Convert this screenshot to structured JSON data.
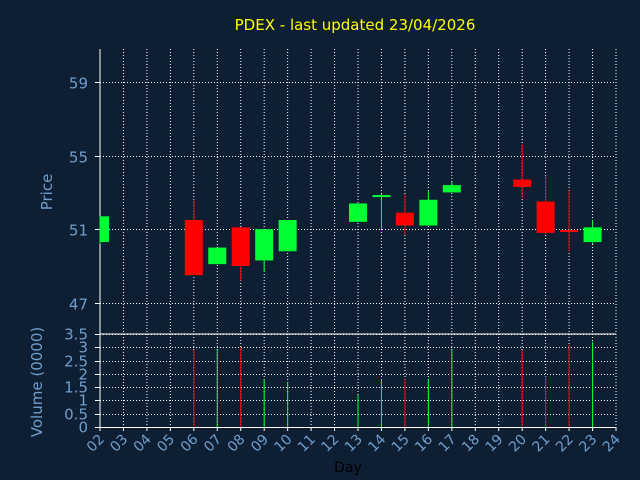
{
  "title": "PDEX - last updated 23/04/2026",
  "colors": {
    "background": "#0f1f33",
    "grid": "#ffffff",
    "axis_text": "#6f9fcf",
    "title": "#ffff00",
    "up": "#00ff33",
    "down": "#ff0000"
  },
  "chart_data": [
    {
      "type": "candlestick",
      "ylabel": "Price",
      "ylim": [
        45.3,
        60.8
      ],
      "yticks": [
        47,
        51,
        55,
        59
      ],
      "x_categories": [
        "02",
        "03",
        "04",
        "05",
        "06",
        "07",
        "08",
        "09",
        "10",
        "11",
        "12",
        "13",
        "14",
        "15",
        "16",
        "17",
        "18",
        "19",
        "20",
        "21",
        "22",
        "23",
        "24"
      ],
      "grid": true,
      "candles": [
        {
          "day": "02",
          "open": 50.3,
          "high": 51.7,
          "low": 50.2,
          "close": 51.7
        },
        {
          "day": "06",
          "open": 51.5,
          "high": 52.6,
          "low": 48.5,
          "close": 48.5
        },
        {
          "day": "07",
          "open": 49.1,
          "high": 50.0,
          "low": 49.1,
          "close": 50.0
        },
        {
          "day": "08",
          "open": 51.1,
          "high": 51.1,
          "low": 48.2,
          "close": 49.0
        },
        {
          "day": "09",
          "open": 49.3,
          "high": 51.0,
          "low": 48.7,
          "close": 51.0
        },
        {
          "day": "10",
          "open": 49.8,
          "high": 51.5,
          "low": 49.8,
          "close": 51.5
        },
        {
          "day": "13",
          "open": 51.4,
          "high": 52.4,
          "low": 51.4,
          "close": 52.4
        },
        {
          "day": "14",
          "open": 52.7,
          "high": 52.9,
          "low": 51.0,
          "close": 52.8
        },
        {
          "day": "15",
          "open": 51.9,
          "high": 52.9,
          "low": 50.7,
          "close": 51.2
        },
        {
          "day": "16",
          "open": 51.2,
          "high": 53.1,
          "low": 51.2,
          "close": 52.6
        },
        {
          "day": "17",
          "open": 53.0,
          "high": 53.6,
          "low": 53.0,
          "close": 53.4
        },
        {
          "day": "20",
          "open": 53.7,
          "high": 55.6,
          "low": 52.7,
          "close": 53.3
        },
        {
          "day": "21",
          "open": 52.5,
          "high": 53.9,
          "low": 50.7,
          "close": 50.8
        },
        {
          "day": "22",
          "open": 50.9,
          "high": 53.1,
          "low": 49.8,
          "close": 50.8
        },
        {
          "day": "23",
          "open": 50.3,
          "high": 51.5,
          "low": 50.2,
          "close": 51.1
        }
      ]
    },
    {
      "type": "bar",
      "ylabel": "Volume (0000)",
      "xlabel": "Day",
      "ylim": [
        0,
        3.5
      ],
      "yticks": [
        "0",
        "0.5",
        "1",
        "1.5",
        "2",
        "2.5",
        "3",
        "3.5"
      ],
      "x_categories": [
        "02",
        "03",
        "04",
        "05",
        "06",
        "07",
        "08",
        "09",
        "10",
        "11",
        "12",
        "13",
        "14",
        "15",
        "16",
        "17",
        "18",
        "19",
        "20",
        "21",
        "22",
        "23",
        "24"
      ],
      "grid": true,
      "bars": [
        {
          "day": "06",
          "value": 2.9,
          "direction": "down"
        },
        {
          "day": "07",
          "value": 2.9,
          "direction": "up"
        },
        {
          "day": "08",
          "value": 3.0,
          "direction": "down"
        },
        {
          "day": "09",
          "value": 1.8,
          "direction": "up"
        },
        {
          "day": "10",
          "value": 1.7,
          "direction": "up"
        },
        {
          "day": "13",
          "value": 1.2,
          "direction": "up"
        },
        {
          "day": "14",
          "value": 1.8,
          "direction": "up"
        },
        {
          "day": "15",
          "value": 1.8,
          "direction": "down"
        },
        {
          "day": "16",
          "value": 1.8,
          "direction": "up"
        },
        {
          "day": "17",
          "value": 2.9,
          "direction": "up"
        },
        {
          "day": "20",
          "value": 2.9,
          "direction": "down"
        },
        {
          "day": "21",
          "value": 1.9,
          "direction": "down"
        },
        {
          "day": "22",
          "value": 3.1,
          "direction": "down"
        },
        {
          "day": "23",
          "value": 3.2,
          "direction": "up"
        }
      ]
    }
  ]
}
